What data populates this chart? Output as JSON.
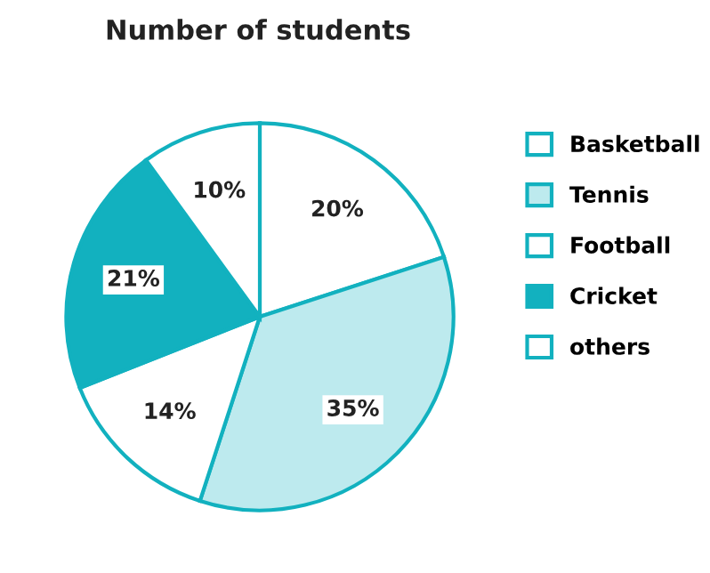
{
  "chart_data": {
    "type": "pie",
    "title": "Number of students",
    "categories": [
      "Basketball",
      "Tennis",
      "Football",
      "Cricket",
      "others"
    ],
    "values": [
      20,
      35,
      14,
      21,
      10
    ],
    "colors": [
      "#ffffff",
      "#bdeaee",
      "#ffffff",
      "#12b1bf",
      "#ffffff"
    ],
    "value_labels": [
      "20%",
      "35%",
      "14%",
      "21%",
      "10%"
    ],
    "legend": "right"
  }
}
